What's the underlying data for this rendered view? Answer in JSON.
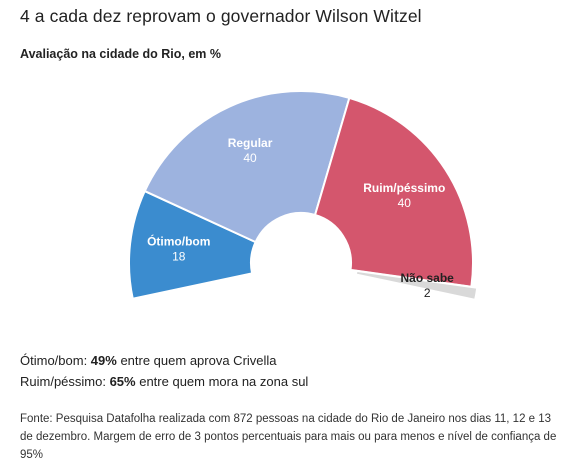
{
  "header": {
    "title": "4 a cada dez reprovam o governador Wilson Witzel",
    "subtitle": "Avaliação na cidade do Rio, em %"
  },
  "chart_data": {
    "type": "pie",
    "variant": "half-donut",
    "title": "4 a cada dez reprovam o governador Wilson Witzel",
    "subtitle": "Avaliação na cidade do Rio, em %",
    "slices": [
      {
        "label": "Ótimo/bom",
        "value": 18,
        "color": "#3b8ccf",
        "text_color": "#ffffff"
      },
      {
        "label": "Regular",
        "value": 40,
        "color": "#9db3df",
        "text_color": "#ffffff"
      },
      {
        "label": "Ruim/péssimo",
        "value": 40,
        "color": "#d4566d",
        "text_color": "#ffffff"
      },
      {
        "label": "Não sabe",
        "value": 2,
        "color": "#d9d9d9",
        "text_color": "#222222"
      }
    ]
  },
  "notes": [
    {
      "prefix": "Ótimo/bom: ",
      "bold": "49%",
      "suffix": " entre quem aprova Crivella"
    },
    {
      "prefix": "Ruim/péssimo: ",
      "bold": "65%",
      "suffix": " entre quem mora na zona sul"
    }
  ],
  "source": "Fonte: Pesquisa Datafolha realizada com 872 pessoas na cidade do Rio de Janeiro nos dias 11, 12 e 13 de dezembro. Margem de erro de 3 pontos percentuais para mais ou para menos e nível de confiança de 95%"
}
